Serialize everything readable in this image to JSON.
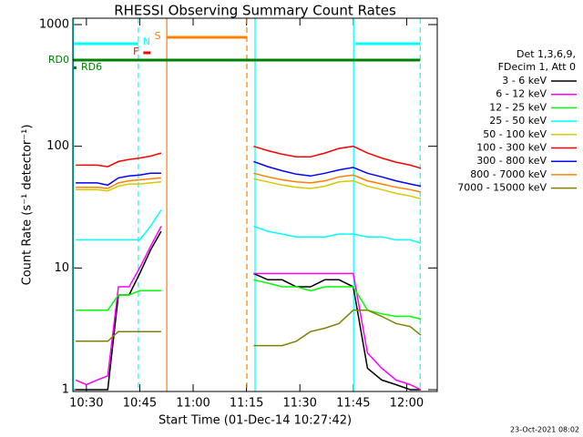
{
  "chart_data": {
    "type": "line",
    "title": "RHESSI Observing Summary Count Rates",
    "xlabel": "Start Time (01-Dec-14 10:27:42)",
    "ylabel": "Count Rate (s⁻¹ detector⁻¹)",
    "footer": "23-Oct-2021 08:02",
    "legend_header": [
      "Det 1,3,6,9,",
      "FDecim 1, Att 0"
    ],
    "ylog": true,
    "ylim": [
      1,
      1000
    ],
    "yticks": [
      1,
      10,
      100,
      1000
    ],
    "xlim": [
      626.2,
      728.6
    ],
    "xticks": [
      {
        "value": 630,
        "label": "10:30"
      },
      {
        "value": 645,
        "label": "10:45"
      },
      {
        "value": 660,
        "label": "11:00"
      },
      {
        "value": 675,
        "label": "11:15"
      },
      {
        "value": 690,
        "label": "11:30"
      },
      {
        "value": 705,
        "label": "11:45"
      },
      {
        "value": 720,
        "label": "12:00"
      }
    ],
    "x": [
      627,
      630,
      633,
      636,
      639,
      642,
      645,
      648,
      651,
      665,
      677,
      681,
      685,
      689,
      693,
      697,
      701,
      705,
      709,
      713,
      717,
      721,
      724
    ],
    "series": [
      {
        "name": "3 - 6 keV",
        "color": "#000000",
        "values": [
          1,
          1,
          1,
          1,
          6,
          6,
          9,
          14,
          20,
          null,
          9,
          8,
          8,
          7,
          7,
          8,
          8,
          7,
          1.5,
          1.2,
          1.1,
          1,
          1
        ]
      },
      {
        "name": "6 - 12 keV",
        "color": "#ff00ff",
        "values": [
          1.2,
          1.1,
          1.2,
          1.3,
          7,
          7,
          10,
          15,
          22,
          null,
          9,
          9,
          9,
          9,
          9,
          9,
          9,
          9,
          2,
          1.5,
          1.2,
          1.1,
          1
        ]
      },
      {
        "name": "12 - 25 keV",
        "color": "#00ff00",
        "values": [
          4.5,
          4.5,
          4.5,
          4.5,
          6,
          6,
          6.5,
          6.5,
          6.5,
          null,
          8,
          7.5,
          7,
          7,
          6.5,
          7,
          7,
          7,
          4.5,
          4.2,
          4,
          4,
          3.8
        ]
      },
      {
        "name": "25 - 50 keV",
        "color": "#00ffff",
        "values": [
          17,
          17,
          17,
          17,
          17,
          17,
          17,
          22,
          30,
          null,
          22,
          20,
          19,
          18,
          18,
          18,
          19,
          19,
          18,
          18,
          17,
          17,
          16
        ]
      },
      {
        "name": "50 - 100 keV",
        "color": "#d8c800",
        "values": [
          44,
          44,
          44,
          43,
          47,
          49,
          49,
          50,
          51,
          null,
          54,
          51,
          48,
          46,
          45,
          47,
          51,
          52,
          47,
          44,
          41,
          39,
          37
        ]
      },
      {
        "name": "100 - 300 keV",
        "color": "#ff0000",
        "values": [
          70,
          70,
          70,
          68,
          75,
          78,
          80,
          83,
          88,
          null,
          100,
          92,
          86,
          82,
          82,
          88,
          96,
          100,
          88,
          80,
          74,
          70,
          66
        ]
      },
      {
        "name": "300 - 800 keV",
        "color": "#0000ff",
        "values": [
          50,
          50,
          50,
          48,
          55,
          57,
          58,
          60,
          60,
          null,
          75,
          68,
          63,
          59,
          57,
          60,
          64,
          67,
          60,
          56,
          52,
          49,
          47
        ]
      },
      {
        "name": "800 - 7000 keV",
        "color": "#ff8000",
        "values": [
          46,
          46,
          46,
          45,
          50,
          52,
          53,
          54,
          55,
          null,
          60,
          56,
          53,
          51,
          50,
          52,
          56,
          58,
          52,
          49,
          46,
          44,
          42
        ]
      },
      {
        "name": "7000 - 15000 keV",
        "color": "#808000",
        "values": [
          2.5,
          2.5,
          2.5,
          2.5,
          3,
          3,
          3,
          3,
          3,
          null,
          2.3,
          2.3,
          2.3,
          2.5,
          3,
          3.2,
          3.5,
          4.5,
          4.5,
          4,
          3.5,
          3.3,
          2.8
        ]
      }
    ],
    "markers": [
      {
        "x": 626.4,
        "color": "#00ffff",
        "dashed": false
      },
      {
        "x": 644.6,
        "color": "#00ffff",
        "dashed": true
      },
      {
        "x": 652.6,
        "color": "#ff8000",
        "dashed": false
      },
      {
        "x": 675.1,
        "color": "#ff8000",
        "dashed": true
      },
      {
        "x": 677.4,
        "color": "#00ffff",
        "dashed": false
      },
      {
        "x": 705.1,
        "color": "#00ffff",
        "dashed": false
      },
      {
        "x": 723.8,
        "color": "#00ffff",
        "dashed": true
      }
    ],
    "flags": [
      {
        "label": "N",
        "color": "#00ffff",
        "bars": [
          [
            626.3,
            644.6
          ],
          [
            705.6,
            723.8
          ]
        ]
      },
      {
        "label": "S",
        "color": "#ff8000",
        "bars": [
          [
            652.6,
            675.1
          ]
        ]
      },
      {
        "label": "F",
        "color": "#ff0000",
        "bars": [
          [
            646.0,
            648.0
          ]
        ]
      },
      {
        "label": "RD0",
        "color": "#008000",
        "bars": [
          [
            626.3,
            723.8
          ]
        ]
      },
      {
        "label": "RD6",
        "color": "#008000",
        "bars": []
      }
    ]
  }
}
